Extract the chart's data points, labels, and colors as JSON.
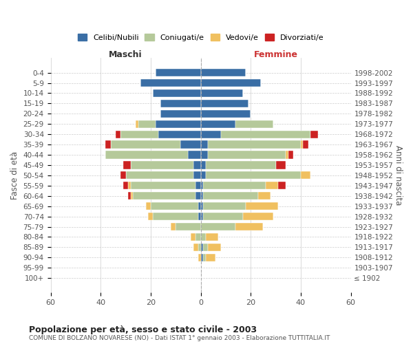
{
  "age_groups": [
    "100+",
    "95-99",
    "90-94",
    "85-89",
    "80-84",
    "75-79",
    "70-74",
    "65-69",
    "60-64",
    "55-59",
    "50-54",
    "45-49",
    "40-44",
    "35-39",
    "30-34",
    "25-29",
    "20-24",
    "15-19",
    "10-14",
    "5-9",
    "0-4"
  ],
  "birth_years": [
    "≤ 1902",
    "1903-1907",
    "1908-1912",
    "1913-1917",
    "1918-1922",
    "1923-1927",
    "1928-1932",
    "1933-1937",
    "1938-1942",
    "1943-1947",
    "1948-1952",
    "1953-1957",
    "1958-1962",
    "1963-1967",
    "1968-1972",
    "1973-1977",
    "1978-1982",
    "1983-1987",
    "1988-1992",
    "1993-1997",
    "1998-2002"
  ],
  "colors": {
    "celibi": "#3a6ea5",
    "coniugati": "#b5c99a",
    "vedovi": "#f0c060",
    "divorziati": "#cc2222"
  },
  "males": {
    "celibi": [
      0,
      0,
      0,
      0,
      0,
      0,
      1,
      1,
      2,
      2,
      3,
      3,
      5,
      8,
      17,
      18,
      16,
      16,
      19,
      24,
      18
    ],
    "coniugati": [
      0,
      0,
      0,
      1,
      2,
      10,
      18,
      19,
      25,
      26,
      27,
      25,
      33,
      28,
      15,
      7,
      0,
      0,
      0,
      0,
      0
    ],
    "vedovi": [
      0,
      0,
      1,
      2,
      2,
      2,
      2,
      2,
      1,
      1,
      0,
      0,
      0,
      0,
      0,
      1,
      0,
      0,
      0,
      0,
      0
    ],
    "divorziati": [
      0,
      0,
      0,
      0,
      0,
      0,
      0,
      0,
      1,
      2,
      2,
      3,
      0,
      2,
      2,
      0,
      0,
      0,
      0,
      0,
      0
    ]
  },
  "females": {
    "celibi": [
      0,
      0,
      1,
      1,
      0,
      0,
      1,
      1,
      1,
      1,
      2,
      2,
      3,
      3,
      8,
      14,
      20,
      19,
      17,
      24,
      18
    ],
    "coniugati": [
      0,
      0,
      1,
      2,
      2,
      14,
      16,
      17,
      22,
      25,
      38,
      28,
      31,
      37,
      36,
      15,
      0,
      0,
      0,
      0,
      0
    ],
    "vedovi": [
      0,
      0,
      4,
      5,
      5,
      11,
      12,
      13,
      5,
      5,
      4,
      0,
      1,
      1,
      0,
      0,
      0,
      0,
      0,
      0,
      0
    ],
    "divorziati": [
      0,
      0,
      0,
      0,
      0,
      0,
      0,
      0,
      0,
      3,
      0,
      4,
      2,
      2,
      3,
      0,
      0,
      0,
      0,
      0,
      0
    ]
  },
  "title": "Popolazione per età, sesso e stato civile - 2003",
  "subtitle": "COMUNE DI BOLZANO NOVARESE (NO) - Dati ISTAT 1° gennaio 2003 - Elaborazione TUTTITALIA.IT",
  "xlabel_left": "Maschi",
  "xlabel_right": "Femmine",
  "ylabel_left": "Fasce di età",
  "ylabel_right": "Anni di nascita",
  "xlim": 60,
  "legend_labels": [
    "Celibi/Nubili",
    "Coniugati/e",
    "Vedovi/e",
    "Divorziati/e"
  ],
  "background_color": "#ffffff",
  "grid_color": "#cccccc"
}
